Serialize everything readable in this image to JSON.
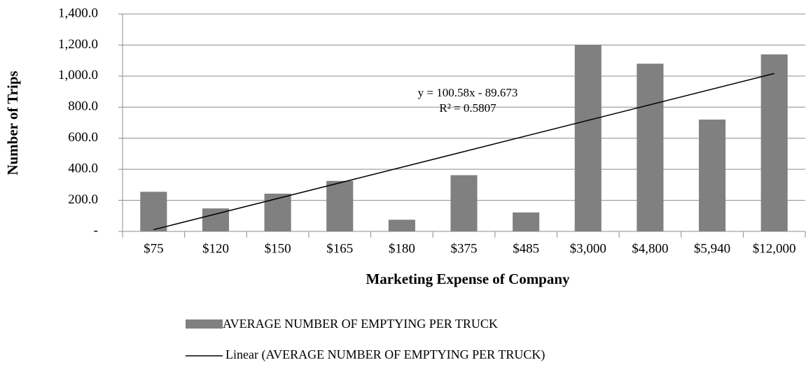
{
  "chart_data": {
    "type": "bar",
    "categories": [
      "$75",
      "$120",
      "$150",
      "$165",
      "$180",
      "$375",
      "$485",
      "$3,000",
      "$4,800",
      "$5,940",
      "$12,000"
    ],
    "series": [
      {
        "name": "AVERAGE NUMBER OF EMPTYING PER TRUCK",
        "color": "#808080",
        "values": [
          255,
          148,
          243,
          325,
          75,
          362,
          122,
          1200,
          1080,
          720,
          1140
        ]
      }
    ],
    "trendline": {
      "name": "Linear (AVERAGE NUMBER OF EMPTYING PER TRUCK)",
      "color": "#000000",
      "slope": 100.58,
      "intercept": -89.673,
      "equation": "y = 100.58x - 89.673",
      "r2": "R² = 0.5807"
    },
    "xlabel": "Marketing Expense of Company",
    "ylabel": "Number of Trips",
    "ylim": [
      0,
      1400
    ],
    "yticks": [
      {
        "value": 0,
        "label": "-"
      },
      {
        "value": 200,
        "label": "200.0"
      },
      {
        "value": 400,
        "label": "400.0"
      },
      {
        "value": 600,
        "label": "600.0"
      },
      {
        "value": 800,
        "label": "800.0"
      },
      {
        "value": 1000,
        "label": "1,000.0"
      },
      {
        "value": 1200,
        "label": "1,200.0"
      },
      {
        "value": 1400,
        "label": "1,400.0"
      }
    ],
    "grid": true,
    "legend": "bottom"
  }
}
